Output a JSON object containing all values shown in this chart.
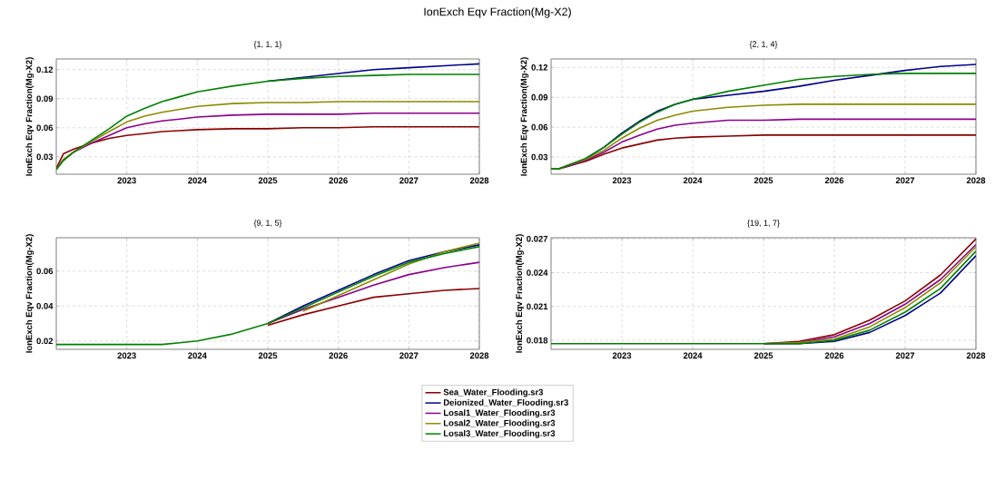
{
  "chart_data": [
    {
      "type": "line",
      "title": "IonExch Eqv Fraction(Mg-X2)",
      "subtitle": "{1, 1, 1}",
      "ylabel": "IonExch Eqv Fraction(Mg-X2)",
      "grid": true,
      "legend": "bottom",
      "x": [
        2022,
        2022.1,
        2022.25,
        2022.5,
        2022.75,
        2023,
        2023.25,
        2023.5,
        2023.75,
        2024,
        2024.5,
        2025,
        2025.5,
        2026,
        2026.5,
        2027,
        2027.5,
        2028
      ],
      "xlim": [
        2022,
        2028
      ],
      "xticks": [
        2023,
        2024,
        2025,
        2026,
        2027,
        2028
      ],
      "ylim": [
        0.012,
        0.131
      ],
      "yticks": [
        0.03,
        0.06,
        0.09,
        0.12
      ],
      "series": [
        {
          "name": "Sea_Water_Flooding.sr3",
          "color": "#8b0000",
          "values": [
            0.018,
            0.033,
            0.038,
            0.044,
            0.049,
            0.052,
            0.054,
            0.056,
            0.057,
            0.058,
            0.059,
            0.059,
            0.06,
            0.06,
            0.061,
            0.061,
            0.061,
            0.061
          ]
        },
        {
          "name": "Deionized_Water_Flooding.sr3",
          "color": "#00008b",
          "values": [
            null,
            null,
            null,
            null,
            null,
            null,
            null,
            null,
            null,
            null,
            null,
            0.108,
            0.112,
            0.116,
            0.12,
            0.122,
            0.124,
            0.126
          ]
        },
        {
          "name": "Losal1_Water_Flooding.sr3",
          "color": "#8b008b",
          "values": [
            0.017,
            0.027,
            0.035,
            0.044,
            0.052,
            0.06,
            0.064,
            0.067,
            0.069,
            0.071,
            0.073,
            0.074,
            0.074,
            0.074,
            0.075,
            0.075,
            0.075,
            0.075
          ]
        },
        {
          "name": "Losal2_Water_Flooding.sr3",
          "color": "#8b8b00",
          "values": [
            0.017,
            0.027,
            0.035,
            0.046,
            0.056,
            0.066,
            0.072,
            0.076,
            0.079,
            0.082,
            0.085,
            0.086,
            0.086,
            0.087,
            0.087,
            0.087,
            0.087,
            0.087
          ]
        },
        {
          "name": "Losal3_Water_Flooding.sr3",
          "color": "#008000",
          "values": [
            0.017,
            0.026,
            0.035,
            0.047,
            0.059,
            0.072,
            0.08,
            0.087,
            0.092,
            0.097,
            0.103,
            0.108,
            0.111,
            0.113,
            0.114,
            0.115,
            0.115,
            0.115
          ]
        }
      ]
    },
    {
      "type": "line",
      "subtitle": "{2, 1, 4}",
      "ylabel": "IonExch Eqv Fraction(Mg-X2)",
      "grid": true,
      "x": [
        2022,
        2022.1,
        2022.25,
        2022.5,
        2022.75,
        2023,
        2023.25,
        2023.5,
        2023.75,
        2024,
        2024.5,
        2025,
        2025.5,
        2026,
        2026.5,
        2027,
        2027.5,
        2028
      ],
      "xlim": [
        2022,
        2028
      ],
      "xticks": [
        2023,
        2024,
        2025,
        2026,
        2027,
        2028
      ],
      "ylim": [
        0.0127,
        0.1285
      ],
      "yticks": [
        0.03,
        0.06,
        0.09,
        0.12
      ],
      "series": [
        {
          "color": "#8b0000",
          "values": [
            0.018,
            0.018,
            0.021,
            0.026,
            0.033,
            0.039,
            0.043,
            0.047,
            0.049,
            0.05,
            0.051,
            0.052,
            0.052,
            0.052,
            0.052,
            0.052,
            0.052,
            0.052
          ]
        },
        {
          "color": "#00008b",
          "values": [
            null,
            null,
            null,
            0.029,
            0.04,
            0.054,
            0.066,
            0.076,
            0.083,
            0.088,
            0.092,
            0.096,
            0.101,
            0.107,
            0.112,
            0.117,
            0.121,
            0.123
          ]
        },
        {
          "color": "#8b008b",
          "values": [
            0.018,
            0.018,
            0.021,
            0.027,
            0.035,
            0.045,
            0.052,
            0.058,
            0.062,
            0.064,
            0.067,
            0.067,
            0.068,
            0.068,
            0.068,
            0.068,
            0.068,
            0.068
          ]
        },
        {
          "color": "#8b8b00",
          "values": [
            0.018,
            0.018,
            0.022,
            0.028,
            0.037,
            0.049,
            0.059,
            0.067,
            0.072,
            0.076,
            0.08,
            0.082,
            0.083,
            0.083,
            0.083,
            0.083,
            0.083,
            0.083
          ]
        },
        {
          "color": "#008000",
          "values": [
            0.018,
            0.018,
            0.022,
            0.029,
            0.04,
            0.053,
            0.065,
            0.075,
            0.083,
            0.088,
            0.096,
            0.102,
            0.108,
            0.111,
            0.113,
            0.114,
            0.114,
            0.114
          ]
        }
      ]
    },
    {
      "type": "line",
      "subtitle": "{9, 1, 5}",
      "ylabel": "IonExch Eqv Fraction(Mg-X2)",
      "grid": true,
      "x": [
        2022,
        2022.1,
        2022.25,
        2022.5,
        2022.75,
        2023,
        2023.25,
        2023.5,
        2023.75,
        2024,
        2024.5,
        2025,
        2025.5,
        2026,
        2026.5,
        2027,
        2027.5,
        2028
      ],
      "xlim": [
        2022,
        2028
      ],
      "xticks": [
        2023,
        2024,
        2025,
        2026,
        2027,
        2028
      ],
      "ylim": [
        0.0152,
        0.0791
      ],
      "yticks": [
        0.02,
        0.04,
        0.06
      ],
      "series": [
        {
          "color": "#8b0000",
          "values": [
            null,
            null,
            null,
            null,
            null,
            null,
            null,
            null,
            null,
            null,
            null,
            0.029,
            0.035,
            0.04,
            0.045,
            0.047,
            0.049,
            0.05
          ]
        },
        {
          "color": "#00008b",
          "values": [
            null,
            null,
            null,
            null,
            null,
            null,
            null,
            null,
            null,
            null,
            null,
            0.03,
            0.04,
            0.049,
            0.058,
            0.066,
            0.071,
            0.075
          ]
        },
        {
          "color": "#8b008b",
          "values": [
            null,
            null,
            null,
            null,
            null,
            null,
            null,
            null,
            null,
            null,
            null,
            0.03,
            0.038,
            0.045,
            0.052,
            0.058,
            0.062,
            0.065
          ]
        },
        {
          "color": "#8b8b00",
          "values": [
            null,
            null,
            null,
            null,
            null,
            null,
            null,
            null,
            null,
            null,
            null,
            null,
            0.037,
            0.046,
            0.055,
            0.064,
            0.071,
            0.076
          ]
        },
        {
          "color": "#008000",
          "values": [
            0.018,
            0.018,
            0.018,
            0.018,
            0.018,
            0.018,
            0.018,
            0.018,
            0.019,
            0.02,
            0.024,
            0.03,
            0.039,
            0.048,
            0.057,
            0.065,
            0.07,
            0.074
          ]
        }
      ]
    },
    {
      "type": "line",
      "subtitle": "{19, 1, 7}",
      "ylabel": "IonExch Eqv Fraction(Mg-X2)",
      "grid": true,
      "x": [
        2022,
        2022.1,
        2022.25,
        2022.5,
        2022.75,
        2023,
        2023.25,
        2023.5,
        2023.75,
        2024,
        2024.5,
        2025,
        2025.5,
        2026,
        2026.5,
        2027,
        2027.5,
        2028
      ],
      "xlim": [
        2022,
        2028
      ],
      "xticks": [
        2023,
        2024,
        2025,
        2026,
        2027,
        2028
      ],
      "ylim": [
        0.0172,
        0.0271
      ],
      "yticks": [
        0.018,
        0.021,
        0.024,
        0.027
      ],
      "series": [
        {
          "color": "#8b0000",
          "values": [
            null,
            null,
            null,
            null,
            null,
            null,
            null,
            null,
            null,
            null,
            null,
            0.0177,
            0.0179,
            0.0185,
            0.0198,
            0.0215,
            0.0238,
            0.027
          ]
        },
        {
          "color": "#00008b",
          "values": [
            null,
            null,
            null,
            null,
            null,
            null,
            null,
            null,
            null,
            null,
            null,
            0.0177,
            0.0177,
            0.0179,
            0.0187,
            0.0202,
            0.0222,
            0.0255
          ]
        },
        {
          "color": "#8b008b",
          "values": [
            null,
            null,
            null,
            null,
            null,
            null,
            null,
            null,
            null,
            null,
            null,
            0.0177,
            0.0178,
            0.0183,
            0.0195,
            0.0212,
            0.0234,
            0.0265
          ]
        },
        {
          "color": "#8b8b00",
          "values": [
            null,
            null,
            null,
            null,
            null,
            null,
            null,
            null,
            null,
            null,
            null,
            0.0177,
            0.0178,
            0.0181,
            0.0192,
            0.0209,
            0.0231,
            0.0263
          ]
        },
        {
          "color": "#008000",
          "values": [
            0.0177,
            0.0177,
            0.0177,
            0.0177,
            0.0177,
            0.0177,
            0.0177,
            0.0177,
            0.0177,
            0.0177,
            0.0177,
            0.0177,
            0.0177,
            0.018,
            0.0189,
            0.0205,
            0.0226,
            0.0259
          ]
        }
      ]
    }
  ]
}
